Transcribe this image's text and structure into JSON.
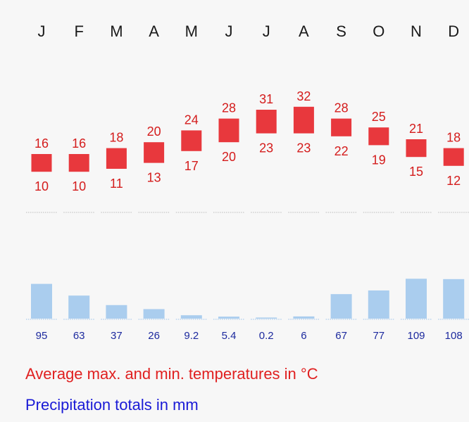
{
  "chart_data": [
    {
      "type": "range-bar",
      "categories": [
        "J",
        "F",
        "M",
        "A",
        "M",
        "J",
        "J",
        "A",
        "S",
        "O",
        "N",
        "D"
      ],
      "series": [
        {
          "name": "max",
          "values": [
            16,
            16,
            18,
            20,
            24,
            28,
            31,
            32,
            28,
            25,
            21,
            18
          ]
        },
        {
          "name": "min",
          "values": [
            10,
            10,
            11,
            13,
            17,
            20,
            23,
            23,
            22,
            19,
            15,
            12
          ]
        }
      ],
      "legend_label": "Average max. and min. temperatures in °C",
      "color": "#e8383d",
      "label_color": "#d41c1c"
    },
    {
      "type": "bar",
      "categories": [
        "J",
        "F",
        "M",
        "A",
        "M",
        "J",
        "J",
        "A",
        "S",
        "O",
        "N",
        "D"
      ],
      "values": [
        95,
        63,
        37,
        26,
        9.2,
        5.4,
        0.2,
        6,
        67,
        77,
        109,
        108
      ],
      "labels": [
        "95",
        "63",
        "37",
        "26",
        "9.2",
        "5.4",
        "0.2",
        "6",
        "67",
        "77",
        "109",
        "108"
      ],
      "legend_label": "Precipitation totals in mm",
      "color": "#aacdee",
      "label_color": "#1d2a9e"
    }
  ]
}
